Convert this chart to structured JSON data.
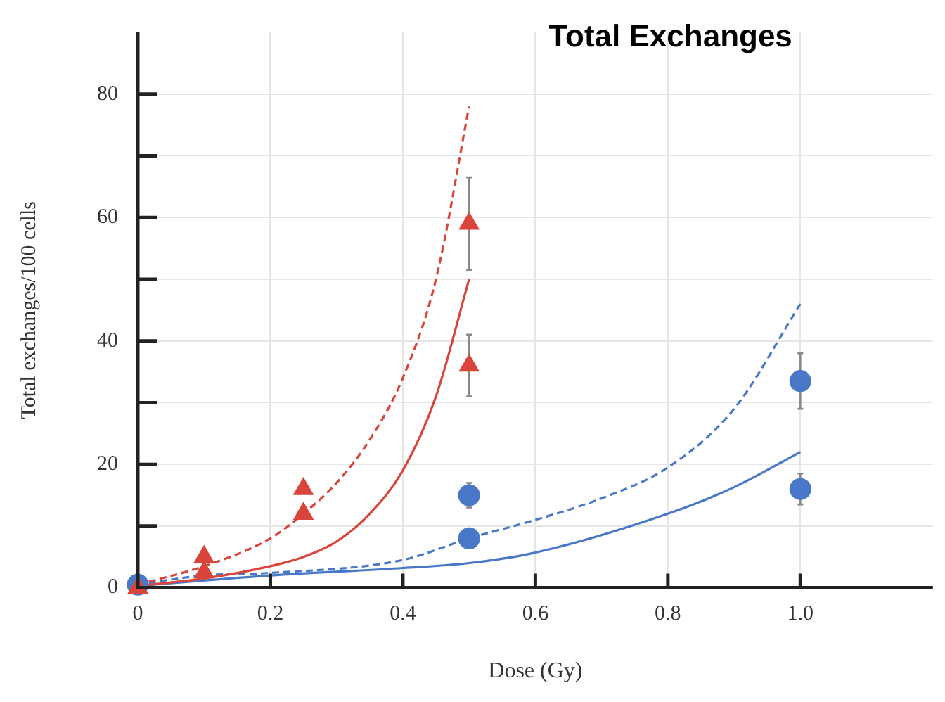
{
  "chart_data": {
    "type": "scatter",
    "title": "Total Exchanges",
    "xlabel": "Dose (Gy)",
    "ylabel": "Total exchanges/100 cells",
    "xlim": [
      0,
      1.2
    ],
    "ylim": [
      0,
      90
    ],
    "xticks": [
      0,
      0.2,
      0.4,
      0.6,
      0.8,
      {
        "value": 1.0,
        "label": "1.0"
      }
    ],
    "yticks": [
      0,
      {
        "value": 10,
        "label": null
      },
      20,
      {
        "value": 30,
        "label": null
      },
      40,
      {
        "value": 50,
        "label": null
      },
      60,
      {
        "value": 70,
        "label": null
      },
      80
    ],
    "grid": true,
    "series": [
      {
        "marker": "triangle",
        "color": "#d9453a",
        "x": [
          0,
          0.1,
          0.25,
          0.5
        ],
        "values": [
          0,
          5,
          16,
          59
        ],
        "errors": [
          null,
          null,
          null,
          7.5
        ]
      },
      {
        "marker": "triangle",
        "color": "#d9453a",
        "x": [
          0.1,
          0.25,
          0.5
        ],
        "values": [
          2.5,
          12,
          36
        ],
        "errors": [
          null,
          null,
          5
        ]
      },
      {
        "marker": "circle",
        "color": "#4a78c8",
        "x": [
          0,
          0.5,
          1.0
        ],
        "values": [
          0.5,
          15,
          33.5
        ],
        "errors": [
          null,
          2,
          4.5
        ]
      },
      {
        "marker": "circle",
        "color": "#4a78c8",
        "x": [
          0.5,
          1.0
        ],
        "values": [
          8,
          16
        ],
        "errors": [
          null,
          2.5
        ]
      },
      {
        "type": "line",
        "line_style": "dashed",
        "marker": "none",
        "color": "#d9453a",
        "x": [
          0,
          0.1,
          0.2,
          0.25,
          0.3,
          0.35,
          0.4,
          0.45,
          0.5
        ],
        "values": [
          0.5,
          3.5,
          8,
          12,
          17,
          24,
          34,
          50,
          78
        ]
      },
      {
        "type": "line",
        "line_style": "solid",
        "marker": "none",
        "color": "#d9453a",
        "x": [
          0,
          0.1,
          0.2,
          0.25,
          0.3,
          0.35,
          0.4,
          0.45,
          0.5
        ],
        "values": [
          0.3,
          1.5,
          3.5,
          5,
          7.5,
          12,
          19,
          31,
          50
        ]
      },
      {
        "type": "line",
        "line_style": "dashed",
        "marker": "none",
        "color": "#4a78c8",
        "x": [
          0,
          0.1,
          0.2,
          0.4,
          0.5,
          0.6,
          0.7,
          0.8,
          0.9,
          1.0
        ],
        "values": [
          0.5,
          2,
          2.4,
          4.5,
          8,
          11,
          14.5,
          19.5,
          29,
          46
        ]
      },
      {
        "type": "line",
        "line_style": "solid",
        "marker": "none",
        "color": "#4a78c8",
        "x": [
          0,
          0.2,
          0.4,
          0.5,
          0.6,
          0.8,
          0.9,
          1.0
        ],
        "values": [
          0.3,
          2,
          3.2,
          4,
          5.7,
          12,
          16.3,
          22
        ]
      }
    ]
  }
}
